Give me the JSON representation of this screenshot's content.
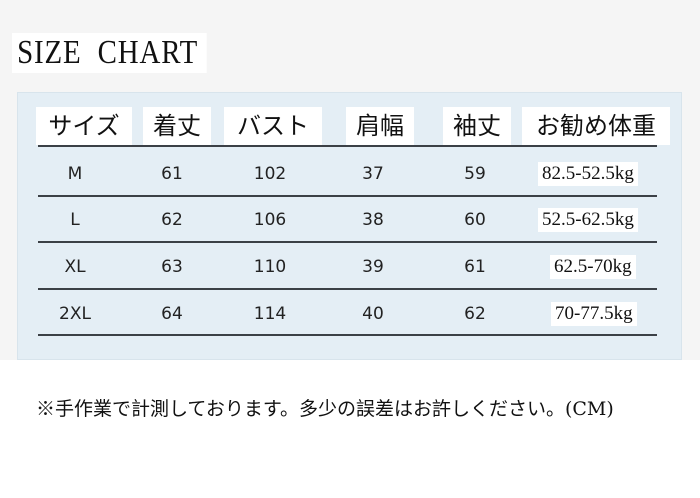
{
  "title": "SIZE  CHART",
  "table": {
    "headers": [
      "サイズ",
      "着丈",
      "バスト",
      "肩幅",
      "袖丈",
      "お勧め体重"
    ],
    "rows": [
      [
        "M",
        "61",
        "102",
        "37",
        "59",
        "82.5-52.5kg"
      ],
      [
        "L",
        "62",
        "106",
        "38",
        "60",
        "52.5-62.5kg"
      ],
      [
        "XL",
        "63",
        "110",
        "39",
        "61",
        "62.5-70kg"
      ],
      [
        "2XL",
        "64",
        "114",
        "40",
        "62",
        "70-77.5kg"
      ]
    ]
  },
  "note": "※手作業で計測しております。多少の誤差はお許しください。(CM)",
  "colors": {
    "panel": "#e4eef5",
    "background": "#f5f5f5"
  }
}
